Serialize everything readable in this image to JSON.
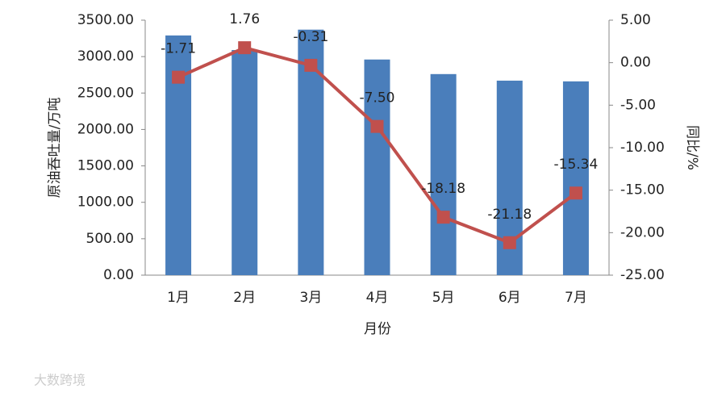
{
  "chart_data": {
    "type": "bar_line",
    "x_label": "月份",
    "y_label": "原油吞吐量/万吨",
    "y2_label": "同比/%",
    "watermark": "大数跨境",
    "categories": [
      "1月",
      "2月",
      "3月",
      "4月",
      "5月",
      "6月",
      "7月"
    ],
    "series": [
      {
        "type": "bar",
        "color": "#4a7ebb",
        "values": [
          3290,
          3090,
          3370,
          2960,
          2760,
          2670,
          2660
        ]
      },
      {
        "type": "line",
        "axis": "y2",
        "color": "#c0504d",
        "values": [
          -1.71,
          1.76,
          -0.31,
          -7.5,
          -18.18,
          -21.18,
          -15.34
        ],
        "value_labels": [
          "-1.71",
          "1.76",
          "-0.31",
          "-7.50",
          "-18.18",
          "-21.18",
          "-15.34"
        ]
      }
    ],
    "ylim": [
      0,
      3500
    ],
    "yticks": [
      {
        "value": 0,
        "label": "0.00"
      },
      {
        "value": 500,
        "label": "500.00"
      },
      {
        "value": 1000,
        "label": "1000.00"
      },
      {
        "value": 1500,
        "label": "1500.00"
      },
      {
        "value": 2000,
        "label": "2000.00"
      },
      {
        "value": 2500,
        "label": "2500.00"
      },
      {
        "value": 3000,
        "label": "3000.00"
      },
      {
        "value": 3500,
        "label": "3500.00"
      }
    ],
    "y2lim": [
      -25,
      5
    ],
    "y2ticks": [
      {
        "value": -25,
        "label": "-25.00"
      },
      {
        "value": -20,
        "label": "-20.00"
      },
      {
        "value": -15,
        "label": "-15.00"
      },
      {
        "value": -10,
        "label": "-10.00"
      },
      {
        "value": -5,
        "label": "-5.00"
      },
      {
        "value": 0,
        "label": "0.00"
      },
      {
        "value": 5,
        "label": "5.00"
      }
    ]
  }
}
